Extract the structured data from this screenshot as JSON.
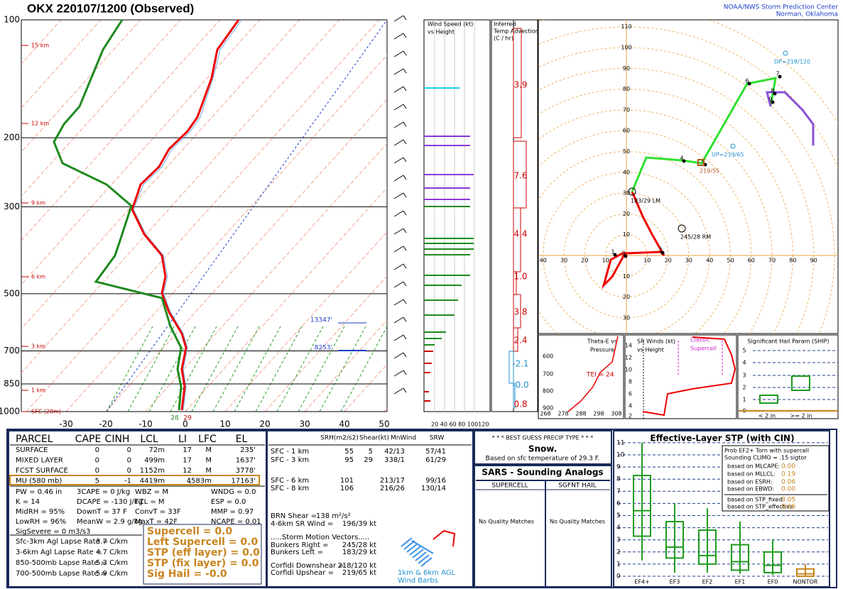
{
  "header": {
    "title": "OKX  220107/1200  (Observed)",
    "org": "NOAA/NWS Storm Prediction Center",
    "location": "Norman, Oklahoma"
  },
  "skewt": {
    "pressure_labels": [
      "100",
      "200",
      "300",
      "500",
      "700",
      "850",
      "1000"
    ],
    "temp_labels": [
      "-30",
      "-20",
      "-10",
      "0",
      "10",
      "20",
      "30",
      "40",
      "50"
    ],
    "height_labels": [
      "15 km",
      "12 km",
      "9 km",
      "6 km",
      "3 km",
      "1 km",
      "SFC (20m)"
    ],
    "level_labels": [
      "13347'",
      "8253'"
    ],
    "sfc_dewpoint": "28",
    "sfc_temp": "29"
  },
  "wind_speed": {
    "title": [
      "Wind Speed (kt)",
      "vs Height"
    ],
    "scale": "20 40 60 80 100120"
  },
  "advection": {
    "title": [
      "Inferred",
      "Temp Advection",
      "(C / hr)"
    ],
    "values": [
      "3.9",
      "7.6",
      "4.4",
      "1.0",
      "3.8",
      "2.4",
      "-2.1",
      "-0.0",
      "0.8"
    ]
  },
  "hodograph": {
    "x_labels": [
      "40",
      "30",
      "20",
      "10",
      "10",
      "20",
      "30",
      "40",
      "50",
      "60",
      "70",
      "80",
      "90"
    ],
    "y_labels": [
      "110",
      "100",
      "90",
      "80",
      "70",
      "60",
      "50",
      "40",
      "30",
      "20",
      "10",
      "10",
      "20",
      "30"
    ],
    "points": [
      "1",
      "2",
      "3",
      "4",
      "5",
      "6",
      "7",
      "8",
      "9"
    ],
    "labels": [
      "DP=218/120",
      "UP=219/65",
      "219/55",
      "183/29 LM",
      "245/28 RM"
    ]
  },
  "theta_e": {
    "title": [
      "Theta-E vs",
      "Pressure"
    ],
    "y_labels": [
      "600",
      "700",
      "800",
      "900"
    ],
    "x_labels": [
      "268",
      "278",
      "288",
      "298",
      "308"
    ],
    "tei": "TEI = 24"
  },
  "sr_winds": {
    "title": [
      "SR Winds (kt)",
      "vs Height"
    ],
    "y_labels": [
      "14",
      "12",
      "10",
      "8",
      "6",
      "4",
      "2"
    ],
    "note": [
      "Classic",
      "Supercell"
    ]
  },
  "ship": {
    "title": "Significant Hail Param (SHIP)",
    "y_labels": [
      "5",
      "4",
      "3",
      "2",
      "1",
      "0"
    ],
    "x_labels": [
      "< 2 in",
      ">= 2 in"
    ]
  },
  "parcel": {
    "header": [
      "PARCEL",
      "CAPE",
      "CINH",
      "LCL",
      "LI",
      "LFC",
      "EL"
    ],
    "rows": [
      [
        "SURFACE",
        "0",
        "0",
        "72m",
        "17",
        "M",
        "235'"
      ],
      [
        "MIXED LAYER",
        "0",
        "0",
        "499m",
        "17",
        "M",
        "1637'"
      ],
      [
        "FCST SURFACE",
        "0",
        "0",
        "1152m",
        "12",
        "M",
        "3778'"
      ],
      [
        "MU  (580 mb)",
        "5",
        "-1",
        "4419m",
        "1",
        "4583m",
        "17163'"
      ]
    ]
  },
  "indices": [
    [
      "PW = 0.46 in",
      "K = 14",
      "MidRH = 95%",
      "LowRH = 96%",
      "SigSevere = 0 m3/s3"
    ],
    [
      "3CAPE = 0 J/kg",
      "DCAPE = -130 J/kg",
      "DownT = 37 F",
      "MeanW = 2.9 g/kg"
    ],
    [
      "WBZ = M",
      "FZL = M",
      "ConvT = 33F",
      "MaxT = 42F"
    ],
    [
      "WNDG = 0.0",
      "ESP = 0.0",
      "MMP = 0.97",
      "NCAPE = 0.01"
    ]
  ],
  "lapse_rates": [
    [
      "Sfc-3km Agl Lapse Rate =",
      "3.7 C/km"
    ],
    [
      "3-6km Agl Lapse Rate =",
      "4.7 C/km"
    ],
    [
      "850-500mb Lapse Rate =",
      "5.3 C/km"
    ],
    [
      "700-500mb Lapse Rate =",
      "5.9 C/km"
    ]
  ],
  "composites": [
    "Supercell = 0.0",
    "Left Supercell = 0.0",
    "STP (eff layer) = 0.0",
    "STP (fix layer) = 0.0",
    "Sig Hail = -0.0"
  ],
  "kinematics": {
    "header": [
      "SRH(m2/s2)",
      "Shear(kt)",
      "MnWind",
      "SRW"
    ],
    "rows": [
      {
        "layer": "SFC - 1 km",
        "srh": "55",
        "shear": "5",
        "mnwind": "42/13",
        "srw": "57/41"
      },
      {
        "layer": "SFC - 3 km",
        "srh": "95",
        "shear": "29",
        "mnwind": "338/1",
        "srw": "61/29"
      },
      {
        "layer": "SFC - 6 km",
        "srh": "101",
        "mnwind": "213/17",
        "srw": "99/16"
      },
      {
        "layer": "SFC - 8 km",
        "srh": "106",
        "mnwind": "216/26",
        "srw": "130/14"
      }
    ],
    "extra": [
      [
        "BRN Shear =",
        "138 m²/s²"
      ],
      [
        "4-6km SR Wind =",
        "196/39 kt"
      ]
    ],
    "vectors_title": ".....Storm Motion Vectors.....",
    "vectors": [
      [
        "Bunkers Right =",
        "245/28 kt"
      ],
      [
        "Bunkers Left =",
        "183/29 kt"
      ],
      [
        "Corfidi Downshear =",
        "218/120 kt"
      ],
      [
        "Corfidi Upshear =",
        "219/65 kt"
      ]
    ],
    "barb_note": [
      "1km & 6km AGL",
      "Wind Barbs"
    ]
  },
  "precip": {
    "title": "* * * BEST GUESS PRECIP TYPE * * *",
    "type": "Snow.",
    "basis": "Based on sfc temperature of 29.3 F."
  },
  "sars": {
    "title": "SARS - Sounding Analogs",
    "columns": [
      "SUPERCELL",
      "SGFNT HAIL"
    ],
    "matches": [
      "No Quality Matches",
      "No Quality Matches"
    ]
  },
  "stp": {
    "title": "Effective-Layer STP (with CIN)",
    "prob": [
      "Prob EF2+ Torn with supercell",
      "Sounding CLIMO = .15 sigtor"
    ],
    "based_on": [
      [
        "based on MLCAPE:",
        "0.00"
      ],
      [
        "based on MLLCL:",
        "0.19"
      ],
      [
        "based on ESRH:",
        "0.06"
      ],
      [
        "based on EBWD:",
        "0.00"
      ],
      [
        "based on STP_fixed:",
        "0.05"
      ],
      [
        "based on STP_effective:",
        "0.06"
      ]
    ],
    "y_labels": [
      "0",
      "1",
      "2",
      "3",
      "4",
      "5",
      "6",
      "7",
      "8",
      "9",
      "10",
      "11"
    ],
    "x_labels": [
      "EF4+",
      "EF3",
      "EF2",
      "EF1",
      "EF0",
      "NONTOR"
    ]
  }
}
